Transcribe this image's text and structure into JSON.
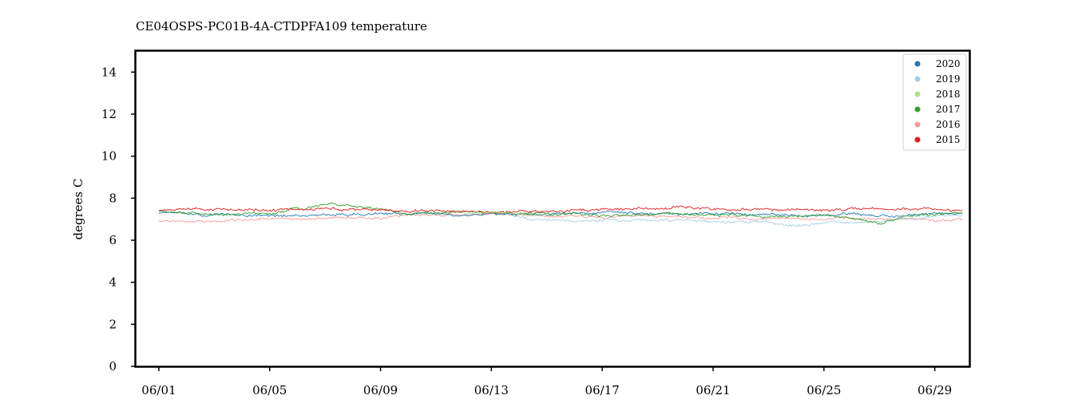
{
  "chart_data": {
    "type": "line",
    "title": "CE04OSPS-PC01B-4A-CTDPFA109 temperature",
    "xlabel": "",
    "ylabel": "degrees C",
    "xlim": [
      "05/31 04:00",
      "06/30 06:00"
    ],
    "ylim": [
      0,
      15
    ],
    "x_ticks": [
      "06/01",
      "06/05",
      "06/09",
      "06/13",
      "06/17",
      "06/21",
      "06/25",
      "06/29"
    ],
    "y_ticks": [
      0,
      2,
      4,
      6,
      8,
      10,
      12,
      14
    ],
    "grid": false,
    "legend_position": "top-right",
    "series": [
      {
        "name": "2020",
        "color": "#1f78b4",
        "x": [
          "06/01",
          "06/03",
          "06/05",
          "06/07",
          "06/09",
          "06/11",
          "06/13",
          "06/15",
          "06/17",
          "06/19",
          "06/21",
          "06/23",
          "06/25",
          "06/27",
          "06/29",
          "06/30"
        ],
        "values": [
          7.3,
          7.2,
          7.15,
          7.2,
          7.3,
          7.25,
          7.3,
          7.25,
          7.35,
          7.3,
          7.25,
          7.2,
          7.2,
          7.15,
          7.2,
          7.25
        ]
      },
      {
        "name": "2019",
        "color": "#a6cee3",
        "x": [
          "06/13",
          "06/14",
          "06/15",
          "06/17",
          "06/19",
          "06/21",
          "06/23",
          "06/24",
          "06/25",
          "06/27",
          "06/29",
          "06/30"
        ],
        "values": [
          7.3,
          7.1,
          6.95,
          7.0,
          6.95,
          6.9,
          6.85,
          6.7,
          6.8,
          6.9,
          7.1,
          7.2
        ]
      },
      {
        "name": "2018",
        "color": "#b2df8a",
        "x": [
          "06/12",
          "06/13",
          "06/14",
          "06/15"
        ],
        "values": [
          7.3,
          7.35,
          7.3,
          7.2
        ]
      },
      {
        "name": "2017",
        "color": "#33a02c",
        "x": [
          "06/01",
          "06/03",
          "06/05",
          "06/06",
          "06/07",
          "06/08",
          "06/09",
          "06/10",
          "06/11",
          "06/13",
          "06/15",
          "06/17",
          "06/19",
          "06/21",
          "06/23",
          "06/25",
          "06/26",
          "06/27",
          "06/28",
          "06/29",
          "06/30"
        ],
        "values": [
          7.4,
          7.2,
          7.3,
          7.5,
          7.7,
          7.65,
          7.5,
          7.3,
          7.3,
          7.3,
          7.2,
          7.2,
          7.25,
          7.2,
          7.15,
          7.2,
          7.0,
          6.8,
          7.1,
          7.2,
          7.3
        ]
      },
      {
        "name": "2016",
        "color": "#fb9a99",
        "x": [
          "06/01",
          "06/03",
          "06/05",
          "06/07",
          "06/09",
          "06/11",
          "06/13",
          "06/15",
          "06/17",
          "06/19",
          "06/21",
          "06/23",
          "06/25",
          "06/27",
          "06/29",
          "06/30"
        ],
        "values": [
          6.95,
          6.9,
          7.0,
          7.05,
          7.1,
          7.2,
          7.25,
          7.2,
          7.15,
          7.1,
          7.05,
          7.05,
          7.0,
          7.05,
          6.95,
          7.0
        ]
      },
      {
        "name": "2015",
        "color": "#e31a1c",
        "x": [
          "06/01",
          "06/03",
          "06/05",
          "06/07",
          "06/09",
          "06/11",
          "06/13",
          "06/15",
          "06/17",
          "06/19",
          "06/21",
          "06/23",
          "06/25",
          "06/27",
          "06/29",
          "06/30"
        ],
        "values": [
          7.45,
          7.5,
          7.45,
          7.45,
          7.45,
          7.4,
          7.35,
          7.35,
          7.45,
          7.55,
          7.5,
          7.5,
          7.35,
          7.5,
          7.45,
          7.45
        ]
      }
    ]
  }
}
